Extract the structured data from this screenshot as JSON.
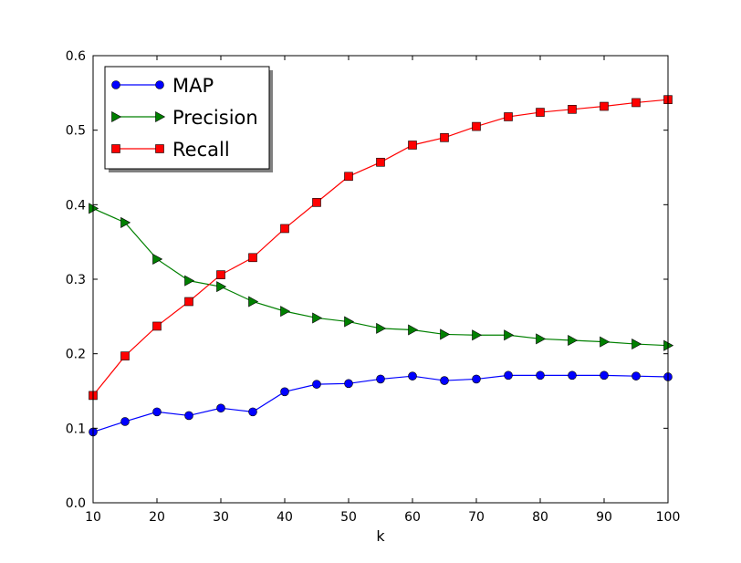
{
  "chart_data": {
    "type": "line",
    "xlabel": "k",
    "ylabel": "",
    "title": "",
    "xlim": [
      10,
      100
    ],
    "ylim": [
      0.0,
      0.6
    ],
    "xticks": [
      "10",
      "20",
      "30",
      "40",
      "50",
      "60",
      "70",
      "80",
      "90",
      "100"
    ],
    "yticks": [
      "0.0",
      "0.1",
      "0.2",
      "0.3",
      "0.4",
      "0.5",
      "0.6"
    ],
    "grid": false,
    "legend_position": "upper-left",
    "x": [
      10,
      15,
      20,
      25,
      30,
      35,
      40,
      45,
      50,
      55,
      60,
      65,
      70,
      75,
      80,
      85,
      90,
      95,
      100
    ],
    "series": [
      {
        "name": "MAP",
        "color": "#0000ff",
        "marker": "circle",
        "values": [
          0.095,
          0.109,
          0.122,
          0.117,
          0.127,
          0.122,
          0.149,
          0.159,
          0.16,
          0.166,
          0.17,
          0.164,
          0.166,
          0.171,
          0.171,
          0.171,
          0.171,
          0.17,
          0.169
        ]
      },
      {
        "name": "Precision",
        "color": "#008000",
        "marker": "triangle-right",
        "values": [
          0.395,
          0.376,
          0.327,
          0.298,
          0.29,
          0.27,
          0.257,
          0.248,
          0.243,
          0.234,
          0.232,
          0.226,
          0.225,
          0.225,
          0.22,
          0.218,
          0.216,
          0.213,
          0.211
        ]
      },
      {
        "name": "Recall",
        "color": "#ff0000",
        "marker": "square",
        "values": [
          0.144,
          0.197,
          0.237,
          0.27,
          0.306,
          0.329,
          0.368,
          0.403,
          0.438,
          0.457,
          0.48,
          0.49,
          0.505,
          0.518,
          0.524,
          0.528,
          0.532,
          0.537,
          0.541
        ]
      }
    ]
  }
}
